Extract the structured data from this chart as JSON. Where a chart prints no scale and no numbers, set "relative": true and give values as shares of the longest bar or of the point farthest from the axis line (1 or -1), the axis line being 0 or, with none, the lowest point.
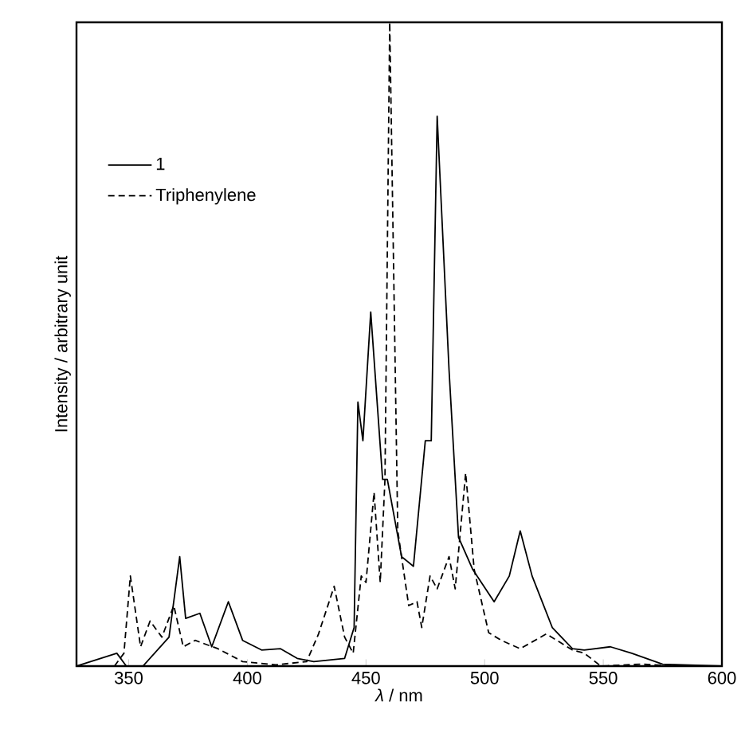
{
  "chart_data": {
    "type": "line",
    "relative": true,
    "xlabel": "*λ* / nm",
    "ylabel": "Intensity / arbitrary unit",
    "xlim": [
      328,
      600
    ],
    "xticks": [
      350,
      400,
      450,
      500,
      550,
      600
    ],
    "tick_labels": "x",
    "legend": "top left",
    "grid": false,
    "marker": "none",
    "series": [
      {
        "name": "1",
        "color": "#000000",
        "line_style": "solid",
        "x": [
          328,
          345,
          349,
          356,
          367,
          371.5,
          374,
          380,
          385,
          392,
          398,
          406,
          414,
          421,
          428,
          441,
          445,
          446.6,
          448.7,
          452,
          457,
          459,
          465,
          470,
          475,
          477.5,
          480,
          485,
          489,
          495,
          504,
          510.4,
          515,
          520,
          528.5,
          537,
          542,
          553,
          562,
          575,
          600
        ],
        "values": [
          0,
          0.02,
          0,
          0,
          0.045,
          0.17,
          0.074,
          0.082,
          0.03,
          0.1,
          0.04,
          0.025,
          0.027,
          0.012,
          0.007,
          0.012,
          0.06,
          0.41,
          0.35,
          0.55,
          0.29,
          0.29,
          0.17,
          0.155,
          0.35,
          0.35,
          0.854,
          0.46,
          0.2,
          0.15,
          0.1,
          0.14,
          0.21,
          0.14,
          0.06,
          0.027,
          0.025,
          0.03,
          0.02,
          0.003,
          0
        ]
      },
      {
        "name": "Triphenylene",
        "color": "#000000",
        "line_style": "dashed",
        "x": [
          344,
          348,
          350.7,
          355,
          359,
          364,
          369,
          373,
          378,
          387.6,
          398,
          412,
          425,
          430,
          436.6,
          441,
          444.6,
          448,
          450,
          453.4,
          456,
          458,
          460,
          463.4,
          468,
          471.5,
          473.5,
          477,
          480,
          485,
          487.6,
          492,
          495.6,
          501.7,
          507,
          515,
          526,
          537,
          542,
          549,
          566,
          582
        ],
        "values": [
          0,
          0.02,
          0.14,
          0.03,
          0.07,
          0.045,
          0.094,
          0.03,
          0.04,
          0.027,
          0.007,
          0.002,
          0.007,
          0.05,
          0.124,
          0.045,
          0.02,
          0.14,
          0.13,
          0.27,
          0.13,
          0.29,
          1,
          0.21,
          0.094,
          0.1,
          0.06,
          0.14,
          0.12,
          0.17,
          0.12,
          0.3,
          0.15,
          0.052,
          0.04,
          0.027,
          0.05,
          0.025,
          0.02,
          0,
          0.003,
          0
        ]
      }
    ]
  }
}
